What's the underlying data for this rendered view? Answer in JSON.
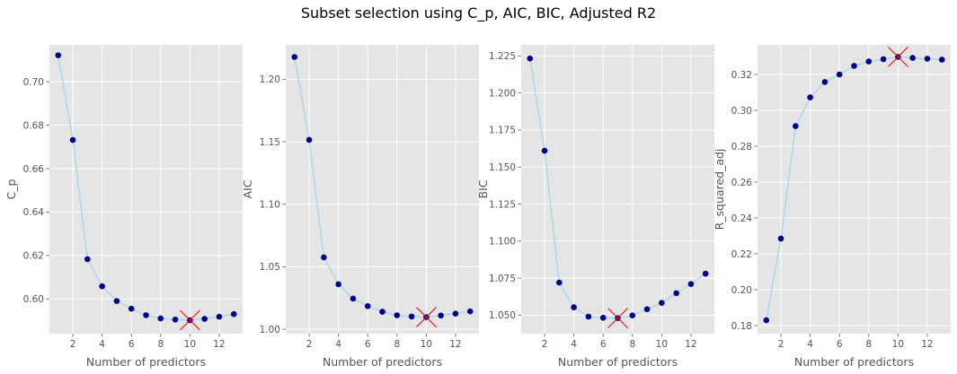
{
  "figure": {
    "suptitle": "Subset selection using C_p, AIC, BIC, Adjusted R2"
  },
  "colors": {
    "panel_bg": "#e5e5e5",
    "grid": "#ffffff",
    "line": "#add8e6",
    "point": "#00008b",
    "marker": "#ff0000",
    "tick_text": "#555555",
    "label_text": "#555555"
  },
  "chart_data": [
    {
      "type": "line",
      "xlabel": "Number of predictors",
      "ylabel": "C_p",
      "x": [
        1,
        2,
        3,
        4,
        5,
        6,
        7,
        8,
        9,
        10,
        11,
        12,
        13
      ],
      "values": [
        0.7122,
        0.6732,
        0.6183,
        0.6058,
        0.599,
        0.5955,
        0.5925,
        0.591,
        0.5905,
        0.5902,
        0.5908,
        0.5918,
        0.593
      ],
      "xlim": [
        0.4,
        13.6
      ],
      "ylim": [
        0.584,
        0.717
      ],
      "xticks": [
        2,
        4,
        6,
        8,
        10,
        12
      ],
      "yticks": [
        0.6,
        0.62,
        0.64,
        0.66,
        0.68,
        0.7
      ],
      "ytick_labels": [
        "0.60",
        "0.62",
        "0.64",
        "0.66",
        "0.68",
        "0.70"
      ],
      "best": {
        "x": 10,
        "y": 0.5902
      },
      "grid": true
    },
    {
      "type": "line",
      "xlabel": "Number of predictors",
      "ylabel": "AIC",
      "x": [
        1,
        2,
        3,
        4,
        5,
        6,
        7,
        8,
        9,
        10,
        11,
        12,
        13
      ],
      "values": [
        1.2178,
        1.1515,
        1.0575,
        1.036,
        1.0245,
        1.0185,
        1.014,
        1.0112,
        1.0102,
        1.0097,
        1.011,
        1.0125,
        1.0143
      ],
      "xlim": [
        0.4,
        13.6
      ],
      "ylim": [
        0.9965,
        1.2275
      ],
      "xticks": [
        2,
        4,
        6,
        8,
        10,
        12
      ],
      "yticks": [
        1.0,
        1.05,
        1.1,
        1.15,
        1.2
      ],
      "ytick_labels": [
        "1.00",
        "1.05",
        "1.10",
        "1.15",
        "1.20"
      ],
      "best": {
        "x": 10,
        "y": 1.0097
      },
      "grid": true
    },
    {
      "type": "line",
      "xlabel": "Number of predictors",
      "ylabel": "BIC",
      "x": [
        1,
        2,
        3,
        4,
        5,
        6,
        7,
        8,
        9,
        10,
        11,
        12,
        13
      ],
      "values": [
        1.2233,
        1.161,
        1.072,
        1.0553,
        1.049,
        1.0482,
        1.048,
        1.0498,
        1.054,
        1.0583,
        1.0648,
        1.071,
        1.078
      ],
      "xlim": [
        0.4,
        13.6
      ],
      "ylim": [
        1.0375,
        1.2325
      ],
      "xticks": [
        2,
        4,
        6,
        8,
        10,
        12
      ],
      "yticks": [
        1.05,
        1.075,
        1.1,
        1.125,
        1.15,
        1.175,
        1.2,
        1.225
      ],
      "ytick_labels": [
        "1.050",
        "1.075",
        "1.100",
        "1.125",
        "1.150",
        "1.175",
        "1.200",
        "1.225"
      ],
      "best": {
        "x": 7,
        "y": 1.048
      },
      "grid": true
    },
    {
      "type": "line",
      "xlabel": "Number of predictors",
      "ylabel": "R_squared_adj",
      "x": [
        1,
        2,
        3,
        4,
        5,
        6,
        7,
        8,
        9,
        10,
        11,
        12,
        13
      ],
      "values": [
        0.183,
        0.2285,
        0.2912,
        0.3072,
        0.3158,
        0.32,
        0.3248,
        0.3272,
        0.3285,
        0.3298,
        0.3292,
        0.3288,
        0.3282
      ],
      "xlim": [
        0.4,
        13.6
      ],
      "ylim": [
        0.1755,
        0.3365
      ],
      "xticks": [
        2,
        4,
        6,
        8,
        10,
        12
      ],
      "yticks": [
        0.18,
        0.2,
        0.22,
        0.24,
        0.26,
        0.28,
        0.3,
        0.32
      ],
      "ytick_labels": [
        "0.18",
        "0.20",
        "0.22",
        "0.24",
        "0.26",
        "0.28",
        "0.30",
        "0.32"
      ],
      "best": {
        "x": 10,
        "y": 0.3298
      },
      "grid": true
    }
  ]
}
